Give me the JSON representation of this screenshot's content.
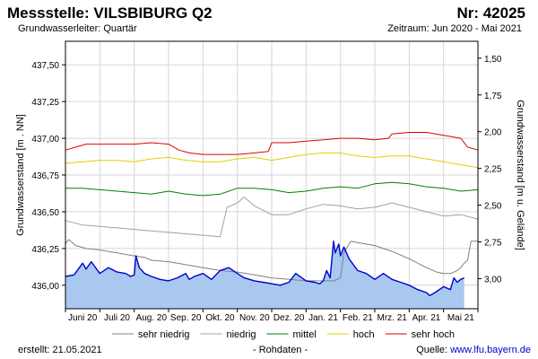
{
  "header": {
    "title": "Messstelle: VILSBIBURG Q2",
    "number": "Nr: 42025",
    "aquifer": "Grundwasserleiter: Quartär",
    "period": "Zeitraum: Jun 2020 - Mai 2021"
  },
  "footer": {
    "created": "erstellt:  21.05.2021",
    "note": "- Rohdaten -",
    "source_label": "Quelle:",
    "source_link": "www.lfu.bayern.de"
  },
  "chart_data": {
    "type": "line",
    "ylabel_left": "Grundwasserstand [m . NN]",
    "ylabel_right": "Grundwasserstand [m u. Gelände]",
    "y_left_range": [
      435.84,
      437.66
    ],
    "y_left_ticks": [
      {
        "value": 436.0,
        "label": "436,00"
      },
      {
        "value": 436.25,
        "label": "436,25"
      },
      {
        "value": 436.5,
        "label": "436,50"
      },
      {
        "value": 436.75,
        "label": "436,75"
      },
      {
        "value": 437.0,
        "label": "437,00"
      },
      {
        "value": 437.25,
        "label": "437,25"
      },
      {
        "value": 437.5,
        "label": "437,50"
      }
    ],
    "y_right_ticks": [
      {
        "value": 437.545,
        "label": "1,50"
      },
      {
        "value": 437.295,
        "label": "1,75"
      },
      {
        "value": 437.045,
        "label": "2,00"
      },
      {
        "value": 436.795,
        "label": "2,25"
      },
      {
        "value": 436.545,
        "label": "2,50"
      },
      {
        "value": 436.295,
        "label": "2,75"
      },
      {
        "value": 436.045,
        "label": "3,00"
      },
      {
        "value": 435.795,
        "label": "3,25"
      }
    ],
    "x_range_months": [
      0,
      12
    ],
    "x_ticks": [
      {
        "pos": 0.5,
        "label": "Juni 20"
      },
      {
        "pos": 1.5,
        "label": "Juli 20"
      },
      {
        "pos": 2.5,
        "label": "Aug. 20"
      },
      {
        "pos": 3.5,
        "label": "Sep. 20"
      },
      {
        "pos": 4.5,
        "label": "Okt. 20"
      },
      {
        "pos": 5.5,
        "label": "Nov. 20"
      },
      {
        "pos": 6.5,
        "label": "Dez. 20"
      },
      {
        "pos": 7.5,
        "label": "Jan. 21"
      },
      {
        "pos": 8.5,
        "label": "Feb. 21"
      },
      {
        "pos": 9.5,
        "label": "Mrz. 21"
      },
      {
        "pos": 10.5,
        "label": "Apr. 21"
      },
      {
        "pos": 11.5,
        "label": "Mai 21"
      }
    ],
    "series": [
      {
        "name": "sehr niedrig",
        "color": "#808080",
        "x": [
          0,
          0.05,
          0.1,
          0.3,
          0.6,
          1.0,
          1.5,
          2.0,
          2.3,
          2.5,
          3.0,
          3.5,
          4.0,
          4.5,
          5.0,
          5.5,
          6.0,
          6.5,
          7.0,
          7.5,
          7.8,
          8.0,
          8.1,
          8.3,
          8.5,
          9.0,
          9.5,
          10.0,
          10.5,
          10.8,
          11.0,
          11.2,
          11.3,
          11.4,
          11.5,
          11.6,
          11.7,
          11.8,
          12.0
        ],
        "values": [
          436.28,
          436.3,
          436.31,
          436.27,
          436.25,
          436.24,
          436.22,
          436.2,
          436.19,
          436.17,
          436.16,
          436.14,
          436.12,
          436.1,
          436.09,
          436.07,
          436.05,
          436.04,
          436.03,
          436.03,
          436.03,
          436.05,
          436.22,
          436.3,
          436.29,
          436.27,
          436.23,
          436.18,
          436.12,
          436.09,
          436.08,
          436.08,
          436.09,
          436.1,
          436.12,
          436.15,
          436.17,
          436.3,
          436.3
        ]
      },
      {
        "name": "niedrig",
        "color": "#a0a0a0",
        "x": [
          0,
          0.5,
          1.0,
          1.5,
          2.0,
          2.5,
          3.0,
          3.5,
          4.0,
          4.5,
          4.7,
          5.0,
          5.2,
          5.5,
          6.0,
          6.5,
          7.0,
          7.5,
          8.0,
          8.5,
          9.0,
          9.5,
          10.0,
          10.5,
          11.0,
          11.5,
          12.0
        ],
        "values": [
          436.44,
          436.41,
          436.4,
          436.39,
          436.38,
          436.37,
          436.36,
          436.35,
          436.34,
          436.33,
          436.53,
          436.56,
          436.6,
          436.54,
          436.48,
          436.48,
          436.52,
          436.55,
          436.54,
          436.52,
          436.53,
          436.56,
          436.53,
          436.5,
          436.47,
          436.48,
          436.45
        ]
      },
      {
        "name": "mittel",
        "color": "#008000",
        "x": [
          0,
          0.5,
          1.0,
          1.5,
          2.0,
          2.5,
          3.0,
          3.5,
          4.0,
          4.5,
          5.0,
          5.5,
          6.0,
          6.5,
          7.0,
          7.5,
          8.0,
          8.5,
          9.0,
          9.5,
          10.0,
          10.5,
          11.0,
          11.5,
          12.0
        ],
        "values": [
          436.66,
          436.66,
          436.65,
          436.64,
          436.63,
          436.62,
          436.64,
          436.62,
          436.61,
          436.62,
          436.66,
          436.66,
          436.65,
          436.63,
          436.64,
          436.66,
          436.67,
          436.66,
          436.69,
          436.7,
          436.69,
          436.67,
          436.66,
          436.64,
          436.65
        ]
      },
      {
        "name": "hoch",
        "color": "#e0d000",
        "x": [
          0,
          0.5,
          1.0,
          1.5,
          2.0,
          2.5,
          3.0,
          3.5,
          4.0,
          4.5,
          5.0,
          5.5,
          6.0,
          6.5,
          7.0,
          7.5,
          8.0,
          8.5,
          9.0,
          9.5,
          10.0,
          10.5,
          11.0,
          11.5,
          12.0
        ],
        "values": [
          436.83,
          436.84,
          436.85,
          436.85,
          436.84,
          436.86,
          436.87,
          436.85,
          436.84,
          436.84,
          436.86,
          436.87,
          436.85,
          436.87,
          436.89,
          436.9,
          436.9,
          436.88,
          436.87,
          436.88,
          436.88,
          436.86,
          436.84,
          436.82,
          436.8
        ]
      },
      {
        "name": "sehr hoch",
        "color": "#e00000",
        "x": [
          0,
          0.3,
          0.6,
          1.0,
          1.5,
          2.0,
          2.5,
          3.0,
          3.3,
          3.6,
          4.0,
          4.5,
          5.0,
          5.5,
          5.9,
          6.0,
          6.5,
          7.0,
          7.5,
          8.0,
          8.5,
          9.0,
          9.4,
          9.5,
          10.0,
          10.5,
          11.0,
          11.5,
          11.7,
          12.0
        ],
        "values": [
          436.92,
          436.94,
          436.96,
          436.96,
          436.96,
          436.96,
          436.97,
          436.96,
          436.92,
          436.9,
          436.89,
          436.89,
          436.89,
          436.9,
          436.91,
          436.97,
          436.97,
          436.98,
          436.99,
          437.0,
          437.0,
          436.99,
          437.0,
          437.03,
          437.04,
          437.04,
          437.02,
          437.0,
          436.94,
          436.92
        ]
      },
      {
        "name": "Rohdaten",
        "color": "#0000cc",
        "fill": "#a8c8f0",
        "in_legend": false,
        "x": [
          0,
          0.25,
          0.5,
          0.6,
          0.75,
          1.0,
          1.25,
          1.5,
          1.75,
          1.9,
          2.0,
          2.05,
          2.15,
          2.3,
          2.5,
          2.75,
          3.0,
          3.25,
          3.5,
          3.6,
          3.75,
          4.0,
          4.25,
          4.5,
          4.75,
          5.0,
          5.2,
          5.5,
          5.75,
          6.0,
          6.25,
          6.5,
          6.7,
          7.0,
          7.25,
          7.4,
          7.5,
          7.6,
          7.7,
          7.8,
          7.85,
          7.95,
          8.0,
          8.1,
          8.25,
          8.5,
          8.75,
          9.0,
          9.25,
          9.5,
          9.75,
          10.0,
          10.25,
          10.5,
          10.6,
          10.75,
          11.0,
          11.2,
          11.3,
          11.4,
          11.5,
          11.6
        ],
        "values": [
          436.06,
          436.07,
          436.15,
          436.11,
          436.16,
          436.08,
          436.12,
          436.09,
          436.08,
          436.06,
          436.07,
          436.2,
          436.12,
          436.08,
          436.06,
          436.04,
          436.03,
          436.05,
          436.08,
          436.04,
          436.06,
          436.08,
          436.04,
          436.1,
          436.12,
          436.08,
          436.05,
          436.03,
          436.02,
          436.01,
          436.0,
          436.02,
          436.08,
          436.03,
          436.02,
          436.01,
          436.03,
          436.1,
          436.05,
          436.3,
          436.22,
          436.28,
          436.2,
          436.26,
          436.18,
          436.1,
          436.08,
          436.04,
          436.08,
          436.04,
          436.02,
          436.0,
          435.97,
          435.95,
          435.93,
          435.95,
          435.99,
          435.97,
          436.05,
          436.02,
          436.04,
          436.05
        ]
      }
    ]
  }
}
